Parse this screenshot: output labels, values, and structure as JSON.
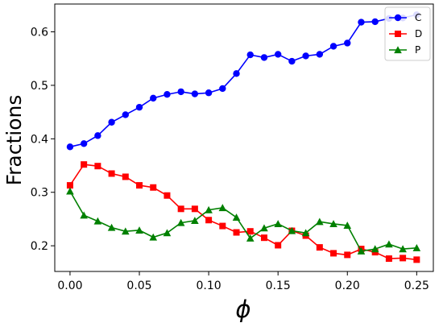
{
  "chart_data": {
    "type": "line",
    "title": "",
    "xlabel": "ϕ",
    "ylabel": "Fractions",
    "xlim": [
      -0.011,
      0.262
    ],
    "ylim": [
      0.152,
      0.652
    ],
    "xticks": [
      0.0,
      0.05,
      0.1,
      0.15,
      0.2,
      0.25
    ],
    "xtick_labels": [
      "0.00",
      "0.05",
      "0.10",
      "0.15",
      "0.20",
      "0.25"
    ],
    "yticks": [
      0.2,
      0.3,
      0.4,
      0.5,
      0.6
    ],
    "ytick_labels": [
      "0.2",
      "0.3",
      "0.4",
      "0.5",
      "0.6"
    ],
    "grid": false,
    "legend_position": "top-right",
    "x": [
      0.0,
      0.01,
      0.02,
      0.03,
      0.04,
      0.05,
      0.06,
      0.07,
      0.08,
      0.09,
      0.1,
      0.11,
      0.12,
      0.13,
      0.14,
      0.15,
      0.16,
      0.17,
      0.18,
      0.19,
      0.2,
      0.21,
      0.22,
      0.23,
      0.24,
      0.25
    ],
    "series": [
      {
        "name": "C",
        "color": "#0000ff",
        "marker": "circle",
        "values": [
          0.385,
          0.391,
          0.406,
          0.431,
          0.445,
          0.459,
          0.476,
          0.483,
          0.488,
          0.484,
          0.486,
          0.494,
          0.522,
          0.557,
          0.552,
          0.558,
          0.545,
          0.555,
          0.558,
          0.573,
          0.579,
          0.618,
          0.619,
          0.625,
          0.626,
          0.632
        ]
      },
      {
        "name": "D",
        "color": "#ff0000",
        "marker": "square",
        "values": [
          0.313,
          0.352,
          0.349,
          0.335,
          0.329,
          0.313,
          0.309,
          0.294,
          0.269,
          0.269,
          0.248,
          0.237,
          0.225,
          0.227,
          0.215,
          0.201,
          0.228,
          0.219,
          0.197,
          0.186,
          0.183,
          0.194,
          0.188,
          0.176,
          0.177,
          0.174
        ]
      },
      {
        "name": "P",
        "color": "#008000",
        "marker": "triangle",
        "values": [
          0.302,
          0.257,
          0.246,
          0.234,
          0.227,
          0.229,
          0.216,
          0.224,
          0.243,
          0.247,
          0.267,
          0.271,
          0.253,
          0.214,
          0.233,
          0.241,
          0.228,
          0.224,
          0.245,
          0.241,
          0.238,
          0.19,
          0.194,
          0.203,
          0.194,
          0.196
        ]
      }
    ]
  }
}
